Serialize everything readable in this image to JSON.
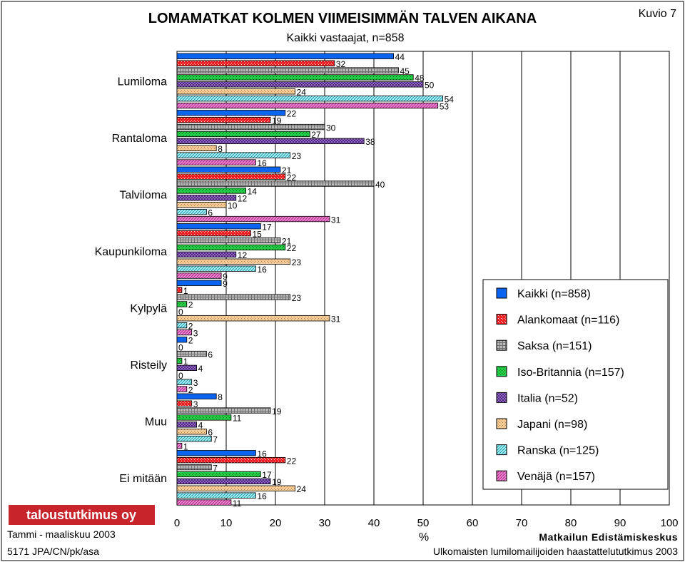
{
  "title": "LOMAMATKAT KOLMEN VIIMEISIMMÄN TALVEN AIKANA",
  "subtitle": "Kaikki vastaajat, n=858",
  "figure_label": "Kuvio 7",
  "footer": {
    "logo_text": "taloustutkimus oy",
    "date": "Tammi - maaliskuu 2003",
    "code": "5171 JPA/CN/pk/asa",
    "org": "Matkailun Edistämiskeskus",
    "source": "Ulkomaisten lumilomailijoiden haastattelututkimus 2003"
  },
  "colors": {
    "Kaikki": "#0a64f0",
    "Alankomaat": "#ee1c1c",
    "Saksa": "#b8b8b8",
    "Iso-Britannia": "#22cc44",
    "Italia": "#9966cc",
    "Japani": "#f4cc9a",
    "Ranska": "#a8eef4",
    "Venäjä": "#f088d0"
  },
  "chart_data": {
    "type": "bar",
    "orientation": "horizontal",
    "xlabel": "%",
    "xlim": [
      0,
      100
    ],
    "xticks": [
      0,
      10,
      20,
      30,
      40,
      50,
      60,
      70,
      80,
      90,
      100
    ],
    "grid": true,
    "legend_position": "right",
    "categories": [
      "Lumiloma",
      "Rantaloma",
      "Talviloma",
      "Kaupunkiloma",
      "Kylpylä",
      "Risteily",
      "Muu",
      "Ei mitään"
    ],
    "series": [
      {
        "name": "Kaikki (n=858)",
        "key": "Kaikki",
        "values": [
          44,
          22,
          21,
          17,
          9,
          2,
          8,
          16
        ]
      },
      {
        "name": "Alankomaat (n=116)",
        "key": "Alankomaat",
        "values": [
          32,
          19,
          22,
          15,
          1,
          0,
          3,
          22
        ]
      },
      {
        "name": "Saksa (n=151)",
        "key": "Saksa",
        "values": [
          45,
          30,
          40,
          21,
          23,
          6,
          19,
          7
        ]
      },
      {
        "name": "Iso-Britannia (n=157)",
        "key": "Iso-Britannia",
        "values": [
          48,
          27,
          14,
          22,
          2,
          1,
          11,
          17
        ]
      },
      {
        "name": "Italia (n=52)",
        "key": "Italia",
        "values": [
          50,
          38,
          12,
          12,
          0,
          4,
          4,
          19
        ]
      },
      {
        "name": "Japani (n=98)",
        "key": "Japani",
        "values": [
          24,
          8,
          10,
          23,
          31,
          0,
          6,
          24
        ]
      },
      {
        "name": "Ranska (n=125)",
        "key": "Ranska",
        "values": [
          54,
          23,
          6,
          16,
          2,
          3,
          7,
          16
        ]
      },
      {
        "name": "Venäjä (n=157)",
        "key": "Venäjä",
        "values": [
          53,
          16,
          31,
          9,
          3,
          2,
          1,
          11
        ]
      }
    ]
  }
}
